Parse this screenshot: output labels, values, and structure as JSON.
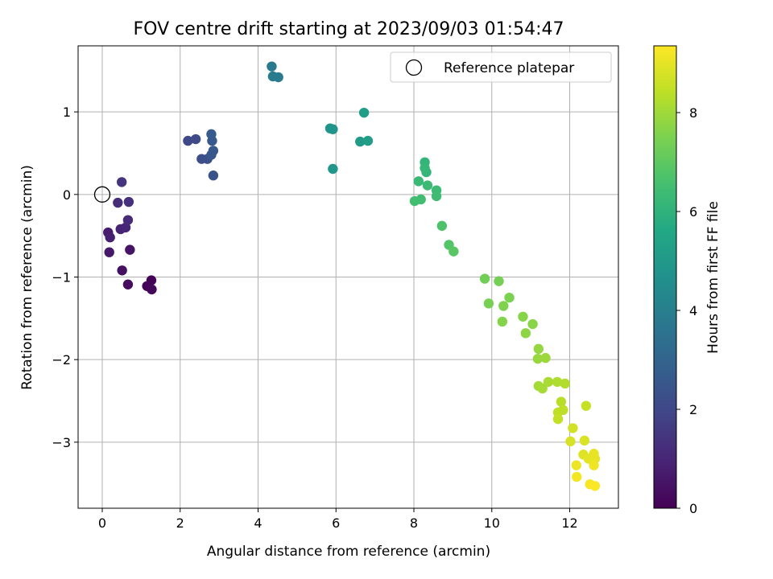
{
  "chart_data": {
    "type": "scatter",
    "title": "FOV centre drift starting at 2023/09/03 01:54:47",
    "xlabel": "Angular distance from reference (arcmin)",
    "ylabel": "Rotation from reference (arcmin)",
    "xlim": [
      -0.62,
      13.25
    ],
    "ylim": [
      -3.8,
      1.8
    ],
    "xticks": [
      0,
      2,
      4,
      6,
      8,
      10,
      12
    ],
    "yticks": [
      -3,
      -2,
      -1,
      0,
      1
    ],
    "grid": true,
    "legend": {
      "placement": "top-right",
      "entries": [
        "Reference platepar"
      ]
    },
    "reference_point": {
      "x": 0,
      "y": 0
    },
    "colorbar": {
      "label": "Hours from first FF file",
      "colormap": "viridis",
      "range": [
        0,
        9.35
      ],
      "ticks": [
        0,
        2,
        4,
        6,
        8
      ]
    },
    "points": [
      {
        "x": 1.26,
        "y": -1.04,
        "h": 0.05
      },
      {
        "x": 1.15,
        "y": -1.11,
        "h": 0.1
      },
      {
        "x": 1.27,
        "y": -1.15,
        "h": 0.15
      },
      {
        "x": 0.66,
        "y": -1.09,
        "h": 0.3
      },
      {
        "x": 0.51,
        "y": -0.92,
        "h": 0.4
      },
      {
        "x": 0.71,
        "y": -0.67,
        "h": 0.5
      },
      {
        "x": 0.18,
        "y": -0.7,
        "h": 0.6
      },
      {
        "x": 0.15,
        "y": -0.46,
        "h": 0.7
      },
      {
        "x": 0.2,
        "y": -0.52,
        "h": 0.8
      },
      {
        "x": 0.47,
        "y": -0.42,
        "h": 0.9
      },
      {
        "x": 0.6,
        "y": -0.4,
        "h": 1.0
      },
      {
        "x": 0.66,
        "y": -0.31,
        "h": 1.1
      },
      {
        "x": 0.4,
        "y": -0.1,
        "h": 1.2
      },
      {
        "x": 0.68,
        "y": -0.09,
        "h": 1.3
      },
      {
        "x": 0.5,
        "y": 0.15,
        "h": 1.4
      },
      {
        "x": 2.2,
        "y": 0.65,
        "h": 2.0
      },
      {
        "x": 2.4,
        "y": 0.67,
        "h": 2.1
      },
      {
        "x": 2.55,
        "y": 0.43,
        "h": 2.2
      },
      {
        "x": 2.7,
        "y": 0.43,
        "h": 2.3
      },
      {
        "x": 2.85,
        "y": 0.23,
        "h": 2.4
      },
      {
        "x": 2.8,
        "y": 0.48,
        "h": 2.5
      },
      {
        "x": 2.85,
        "y": 0.53,
        "h": 2.55
      },
      {
        "x": 2.82,
        "y": 0.65,
        "h": 2.6
      },
      {
        "x": 2.8,
        "y": 0.73,
        "h": 2.65
      },
      {
        "x": 4.35,
        "y": 1.55,
        "h": 3.8
      },
      {
        "x": 4.38,
        "y": 1.43,
        "h": 3.85
      },
      {
        "x": 4.52,
        "y": 1.42,
        "h": 3.9
      },
      {
        "x": 5.85,
        "y": 0.8,
        "h": 4.8
      },
      {
        "x": 5.92,
        "y": 0.79,
        "h": 4.85
      },
      {
        "x": 5.92,
        "y": 0.31,
        "h": 4.9
      },
      {
        "x": 6.62,
        "y": 0.64,
        "h": 5.1
      },
      {
        "x": 6.72,
        "y": 0.99,
        "h": 5.15
      },
      {
        "x": 6.82,
        "y": 0.65,
        "h": 5.2
      },
      {
        "x": 8.28,
        "y": 0.39,
        "h": 6.1
      },
      {
        "x": 8.32,
        "y": 0.27,
        "h": 6.15
      },
      {
        "x": 8.28,
        "y": 0.32,
        "h": 6.2
      },
      {
        "x": 8.12,
        "y": 0.16,
        "h": 6.25
      },
      {
        "x": 8.35,
        "y": 0.11,
        "h": 6.3
      },
      {
        "x": 8.58,
        "y": 0.05,
        "h": 6.35
      },
      {
        "x": 8.58,
        "y": -0.02,
        "h": 6.4
      },
      {
        "x": 8.18,
        "y": -0.06,
        "h": 6.45
      },
      {
        "x": 8.02,
        "y": -0.08,
        "h": 6.5
      },
      {
        "x": 8.72,
        "y": -0.38,
        "h": 6.7
      },
      {
        "x": 8.9,
        "y": -0.61,
        "h": 6.8
      },
      {
        "x": 9.02,
        "y": -0.69,
        "h": 6.9
      },
      {
        "x": 9.82,
        "y": -1.02,
        "h": 7.3
      },
      {
        "x": 10.18,
        "y": -1.05,
        "h": 7.4
      },
      {
        "x": 9.92,
        "y": -1.32,
        "h": 7.45
      },
      {
        "x": 10.45,
        "y": -1.25,
        "h": 7.5
      },
      {
        "x": 10.3,
        "y": -1.35,
        "h": 7.55
      },
      {
        "x": 10.27,
        "y": -1.54,
        "h": 7.6
      },
      {
        "x": 10.8,
        "y": -1.48,
        "h": 7.65
      },
      {
        "x": 11.05,
        "y": -1.57,
        "h": 7.7
      },
      {
        "x": 10.87,
        "y": -1.68,
        "h": 7.75
      },
      {
        "x": 11.2,
        "y": -1.87,
        "h": 7.85
      },
      {
        "x": 11.18,
        "y": -1.99,
        "h": 7.9
      },
      {
        "x": 11.38,
        "y": -1.98,
        "h": 7.95
      },
      {
        "x": 11.2,
        "y": -2.32,
        "h": 8.05
      },
      {
        "x": 11.3,
        "y": -2.35,
        "h": 8.1
      },
      {
        "x": 11.45,
        "y": -2.27,
        "h": 8.15
      },
      {
        "x": 11.68,
        "y": -2.27,
        "h": 8.2
      },
      {
        "x": 11.88,
        "y": -2.29,
        "h": 8.25
      },
      {
        "x": 11.78,
        "y": -2.51,
        "h": 8.35
      },
      {
        "x": 11.83,
        "y": -2.61,
        "h": 8.4
      },
      {
        "x": 11.7,
        "y": -2.64,
        "h": 8.45
      },
      {
        "x": 11.7,
        "y": -2.72,
        "h": 8.5
      },
      {
        "x": 12.42,
        "y": -2.56,
        "h": 8.55
      },
      {
        "x": 12.08,
        "y": -2.83,
        "h": 8.7
      },
      {
        "x": 12.02,
        "y": -2.99,
        "h": 8.8
      },
      {
        "x": 12.38,
        "y": -2.98,
        "h": 8.85
      },
      {
        "x": 12.35,
        "y": -3.15,
        "h": 8.9
      },
      {
        "x": 12.48,
        "y": -3.2,
        "h": 8.95
      },
      {
        "x": 12.62,
        "y": -3.14,
        "h": 9.0
      },
      {
        "x": 12.65,
        "y": -3.2,
        "h": 9.05
      },
      {
        "x": 12.17,
        "y": -3.28,
        "h": 9.1
      },
      {
        "x": 12.62,
        "y": -3.28,
        "h": 9.15
      },
      {
        "x": 12.18,
        "y": -3.42,
        "h": 9.2
      },
      {
        "x": 12.52,
        "y": -3.51,
        "h": 9.25
      },
      {
        "x": 12.65,
        "y": -3.53,
        "h": 9.3
      }
    ]
  }
}
